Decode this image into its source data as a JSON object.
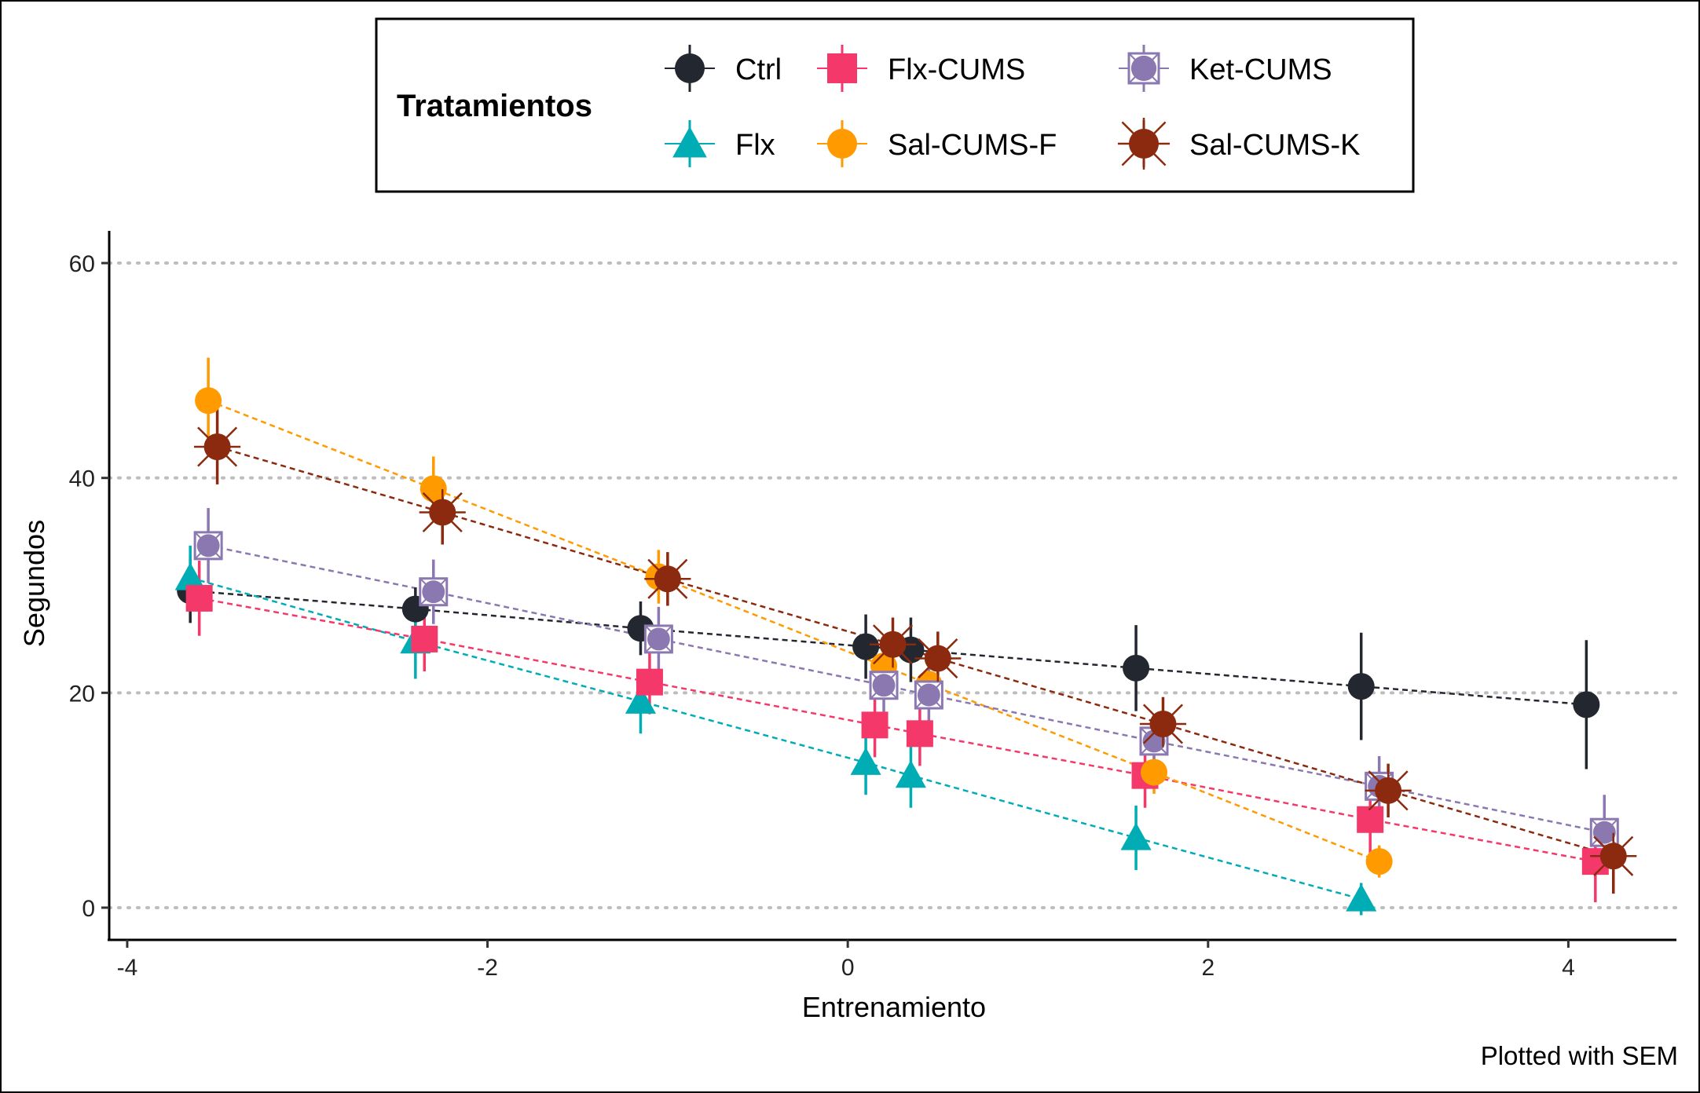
{
  "chart_data": {
    "type": "scatter",
    "xlabel": "Entrenamiento",
    "ylabel": "Segundos",
    "caption": "Plotted with SEM",
    "xlim": [
      -4.1,
      4.6
    ],
    "ylim": [
      -3,
      63
    ],
    "xticks": [
      -4,
      -2,
      0,
      2,
      4
    ],
    "yticks": [
      0,
      20,
      40,
      60
    ],
    "xtick_labels": [
      "-4",
      "-2",
      "0",
      "2",
      "4"
    ],
    "ytick_labels": [
      "0",
      "20",
      "40",
      "60"
    ],
    "grid": "horizontal-dotted",
    "legend": {
      "title": "Tratamientos",
      "placement": "top"
    },
    "series": [
      {
        "name": "Ctrl",
        "color": "#23272F",
        "shape": "circle",
        "points": [
          {
            "x": -3.65,
            "y": 29.5,
            "err": 3.0
          },
          {
            "x": -2.4,
            "y": 27.8,
            "err": 2.0
          },
          {
            "x": -1.15,
            "y": 26.0,
            "err": 2.5
          },
          {
            "x": 0.1,
            "y": 24.3,
            "err": 3.0
          },
          {
            "x": 0.35,
            "y": 24.0,
            "err": 3.0
          },
          {
            "x": 1.6,
            "y": 22.3,
            "err": 4.0
          },
          {
            "x": 2.85,
            "y": 20.6,
            "err": 5.0
          },
          {
            "x": 4.1,
            "y": 18.9,
            "err": 6.0
          }
        ]
      },
      {
        "name": "Flx",
        "color": "#00ADB5",
        "shape": "triangle",
        "points": [
          {
            "x": -3.65,
            "y": 30.7,
            "err": 3.0
          },
          {
            "x": -2.4,
            "y": 24.8,
            "err": 3.5
          },
          {
            "x": -1.15,
            "y": 19.2,
            "err": 3.0
          },
          {
            "x": 0.1,
            "y": 13.5,
            "err": 3.0
          },
          {
            "x": 0.35,
            "y": 12.3,
            "err": 3.0
          },
          {
            "x": 1.6,
            "y": 6.5,
            "err": 3.0
          },
          {
            "x": 2.85,
            "y": 0.8,
            "err": 1.5
          }
        ]
      },
      {
        "name": "Flx-CUMS",
        "color": "#F5386A",
        "shape": "square",
        "points": [
          {
            "x": -3.6,
            "y": 28.8,
            "err": 3.5
          },
          {
            "x": -2.35,
            "y": 25.0,
            "err": 3.0
          },
          {
            "x": -1.1,
            "y": 21.0,
            "err": 3.0
          },
          {
            "x": 0.15,
            "y": 17.0,
            "err": 3.0
          },
          {
            "x": 0.4,
            "y": 16.2,
            "err": 3.0
          },
          {
            "x": 1.65,
            "y": 12.3,
            "err": 3.0
          },
          {
            "x": 2.9,
            "y": 8.2,
            "err": 4.0
          },
          {
            "x": 4.15,
            "y": 4.3,
            "err": 3.8
          }
        ]
      },
      {
        "name": "Sal-CUMS-F",
        "color": "#FF9A00",
        "shape": "circle",
        "points": [
          {
            "x": -3.55,
            "y": 47.2,
            "err": 4.0
          },
          {
            "x": -2.3,
            "y": 39.0,
            "err": 3.0
          },
          {
            "x": -1.05,
            "y": 30.8,
            "err": 2.5
          },
          {
            "x": 0.2,
            "y": 22.5,
            "err": 2.5
          },
          {
            "x": 0.45,
            "y": 20.8,
            "err": 2.5
          },
          {
            "x": 1.7,
            "y": 12.6,
            "err": 2.0
          },
          {
            "x": 2.95,
            "y": 4.3,
            "err": 1.5
          }
        ]
      },
      {
        "name": "Ket-CUMS",
        "color": "#8B78B0",
        "shape": "square-cross",
        "points": [
          {
            "x": -3.55,
            "y": 33.7,
            "err": 3.5
          },
          {
            "x": -2.3,
            "y": 29.4,
            "err": 3.0
          },
          {
            "x": -1.05,
            "y": 25.0,
            "err": 3.0
          },
          {
            "x": 0.2,
            "y": 20.7,
            "err": 2.5
          },
          {
            "x": 0.45,
            "y": 19.8,
            "err": 2.5
          },
          {
            "x": 1.7,
            "y": 15.5,
            "err": 2.5
          },
          {
            "x": 2.95,
            "y": 11.3,
            "err": 2.8
          },
          {
            "x": 4.2,
            "y": 7.0,
            "err": 3.5
          }
        ]
      },
      {
        "name": "Sal-CUMS-K",
        "color": "#8B2A0E",
        "shape": "circle-star",
        "points": [
          {
            "x": -3.5,
            "y": 42.9,
            "err": 3.5
          },
          {
            "x": -2.25,
            "y": 36.8,
            "err": 3.0
          },
          {
            "x": -1.0,
            "y": 30.6,
            "err": 2.5
          },
          {
            "x": 0.25,
            "y": 24.5,
            "err": 2.5
          },
          {
            "x": 0.5,
            "y": 23.2,
            "err": 2.5
          },
          {
            "x": 1.75,
            "y": 17.1,
            "err": 2.5
          },
          {
            "x": 3.0,
            "y": 10.9,
            "err": 2.5
          },
          {
            "x": 4.25,
            "y": 4.8,
            "err": 3.5
          }
        ]
      }
    ]
  }
}
